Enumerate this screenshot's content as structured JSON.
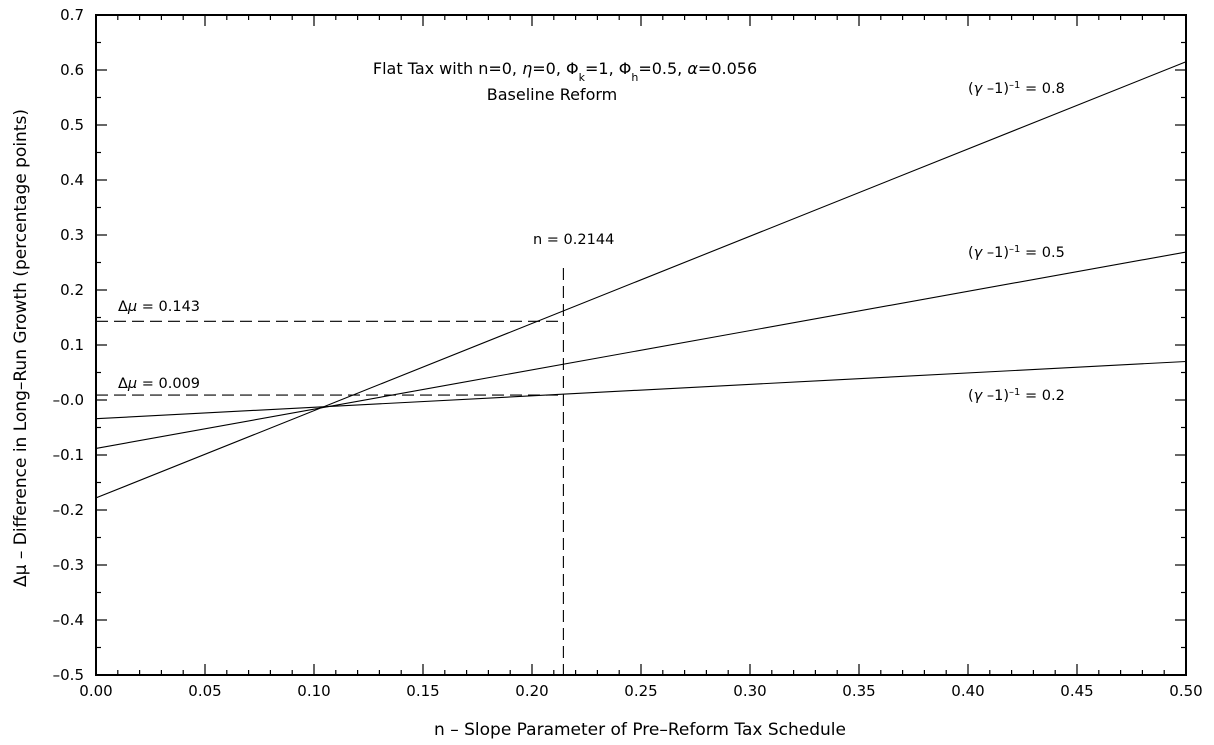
{
  "chart_data": {
    "type": "line",
    "title": "Flat Tax with n=0, η=0, Φk=1, Φh=0.5, α=0.056",
    "subtitle": "Baseline Reform",
    "title_parts": {
      "pre": "Flat Tax with n=0, ",
      "eta": "η",
      "eta_rest": "=0, ",
      "phik": "Φ",
      "phik_sub": "k",
      "phik_rest": "=1, ",
      "phih": "Φ",
      "phih_sub": "h",
      "phih_rest": "=0.5, ",
      "alpha": "α",
      "alpha_rest": "=0.056"
    },
    "xlabel": "n  –  Slope Parameter of Pre–Reform Tax Schedule",
    "ylabel": "Δμ  –  Difference in Long–Run Growth (percentage points)",
    "xlim": [
      0.0,
      0.5
    ],
    "ylim": [
      -0.5,
      0.7
    ],
    "x_ticks": [
      "0.00",
      "0.05",
      "0.10",
      "0.15",
      "0.20",
      "0.25",
      "0.30",
      "0.35",
      "0.40",
      "0.45",
      "0.50"
    ],
    "y_ticks": [
      "–0.5",
      "–0.4",
      "–0.3",
      "–0.2",
      "–0.1",
      "–0.0",
      "0.1",
      "0.2",
      "0.3",
      "0.4",
      "0.5",
      "0.6",
      "0.7"
    ],
    "grid": false,
    "series": [
      {
        "name": "(γ –1)⁻¹ = 0.8",
        "x": [
          0.0,
          0.5
        ],
        "y": [
          -0.178,
          0.615
        ]
      },
      {
        "name": "(γ –1)⁻¹ = 0.5",
        "x": [
          0.0,
          0.5
        ],
        "y": [
          -0.088,
          0.269
        ]
      },
      {
        "name": "(γ –1)⁻¹ = 0.2",
        "x": [
          0.0,
          0.5
        ],
        "y": [
          -0.034,
          0.07
        ]
      }
    ],
    "series_labels": {
      "s08": {
        "gamma": "γ",
        "mid": " –1)",
        "sup": "–1",
        "val": " = 0.8"
      },
      "s05": {
        "gamma": "γ",
        "mid": " –1)",
        "sup": "–1",
        "val": " = 0.5"
      },
      "s02": {
        "gamma": "γ",
        "mid": " –1)",
        "sup": "–1",
        "val": " = 0.2"
      }
    },
    "reference_lines": [
      {
        "type": "vertical",
        "x": 0.2144,
        "y_top": 0.24,
        "label": "n = 0.2144"
      },
      {
        "type": "horizontal",
        "y": 0.143,
        "x_end": 0.2144,
        "label": "Δμ = 0.143"
      },
      {
        "type": "horizontal",
        "y": 0.009,
        "x_end": 0.2144,
        "label": "Δμ = 0.009"
      }
    ],
    "annotations": {
      "n_ref": "n = 0.2144",
      "dmu1": {
        "delta": "Δ",
        "mu": "μ",
        "rest": " = 0.143"
      },
      "dmu2": {
        "delta": "Δ",
        "mu": "μ",
        "rest": " = 0.009"
      }
    }
  }
}
